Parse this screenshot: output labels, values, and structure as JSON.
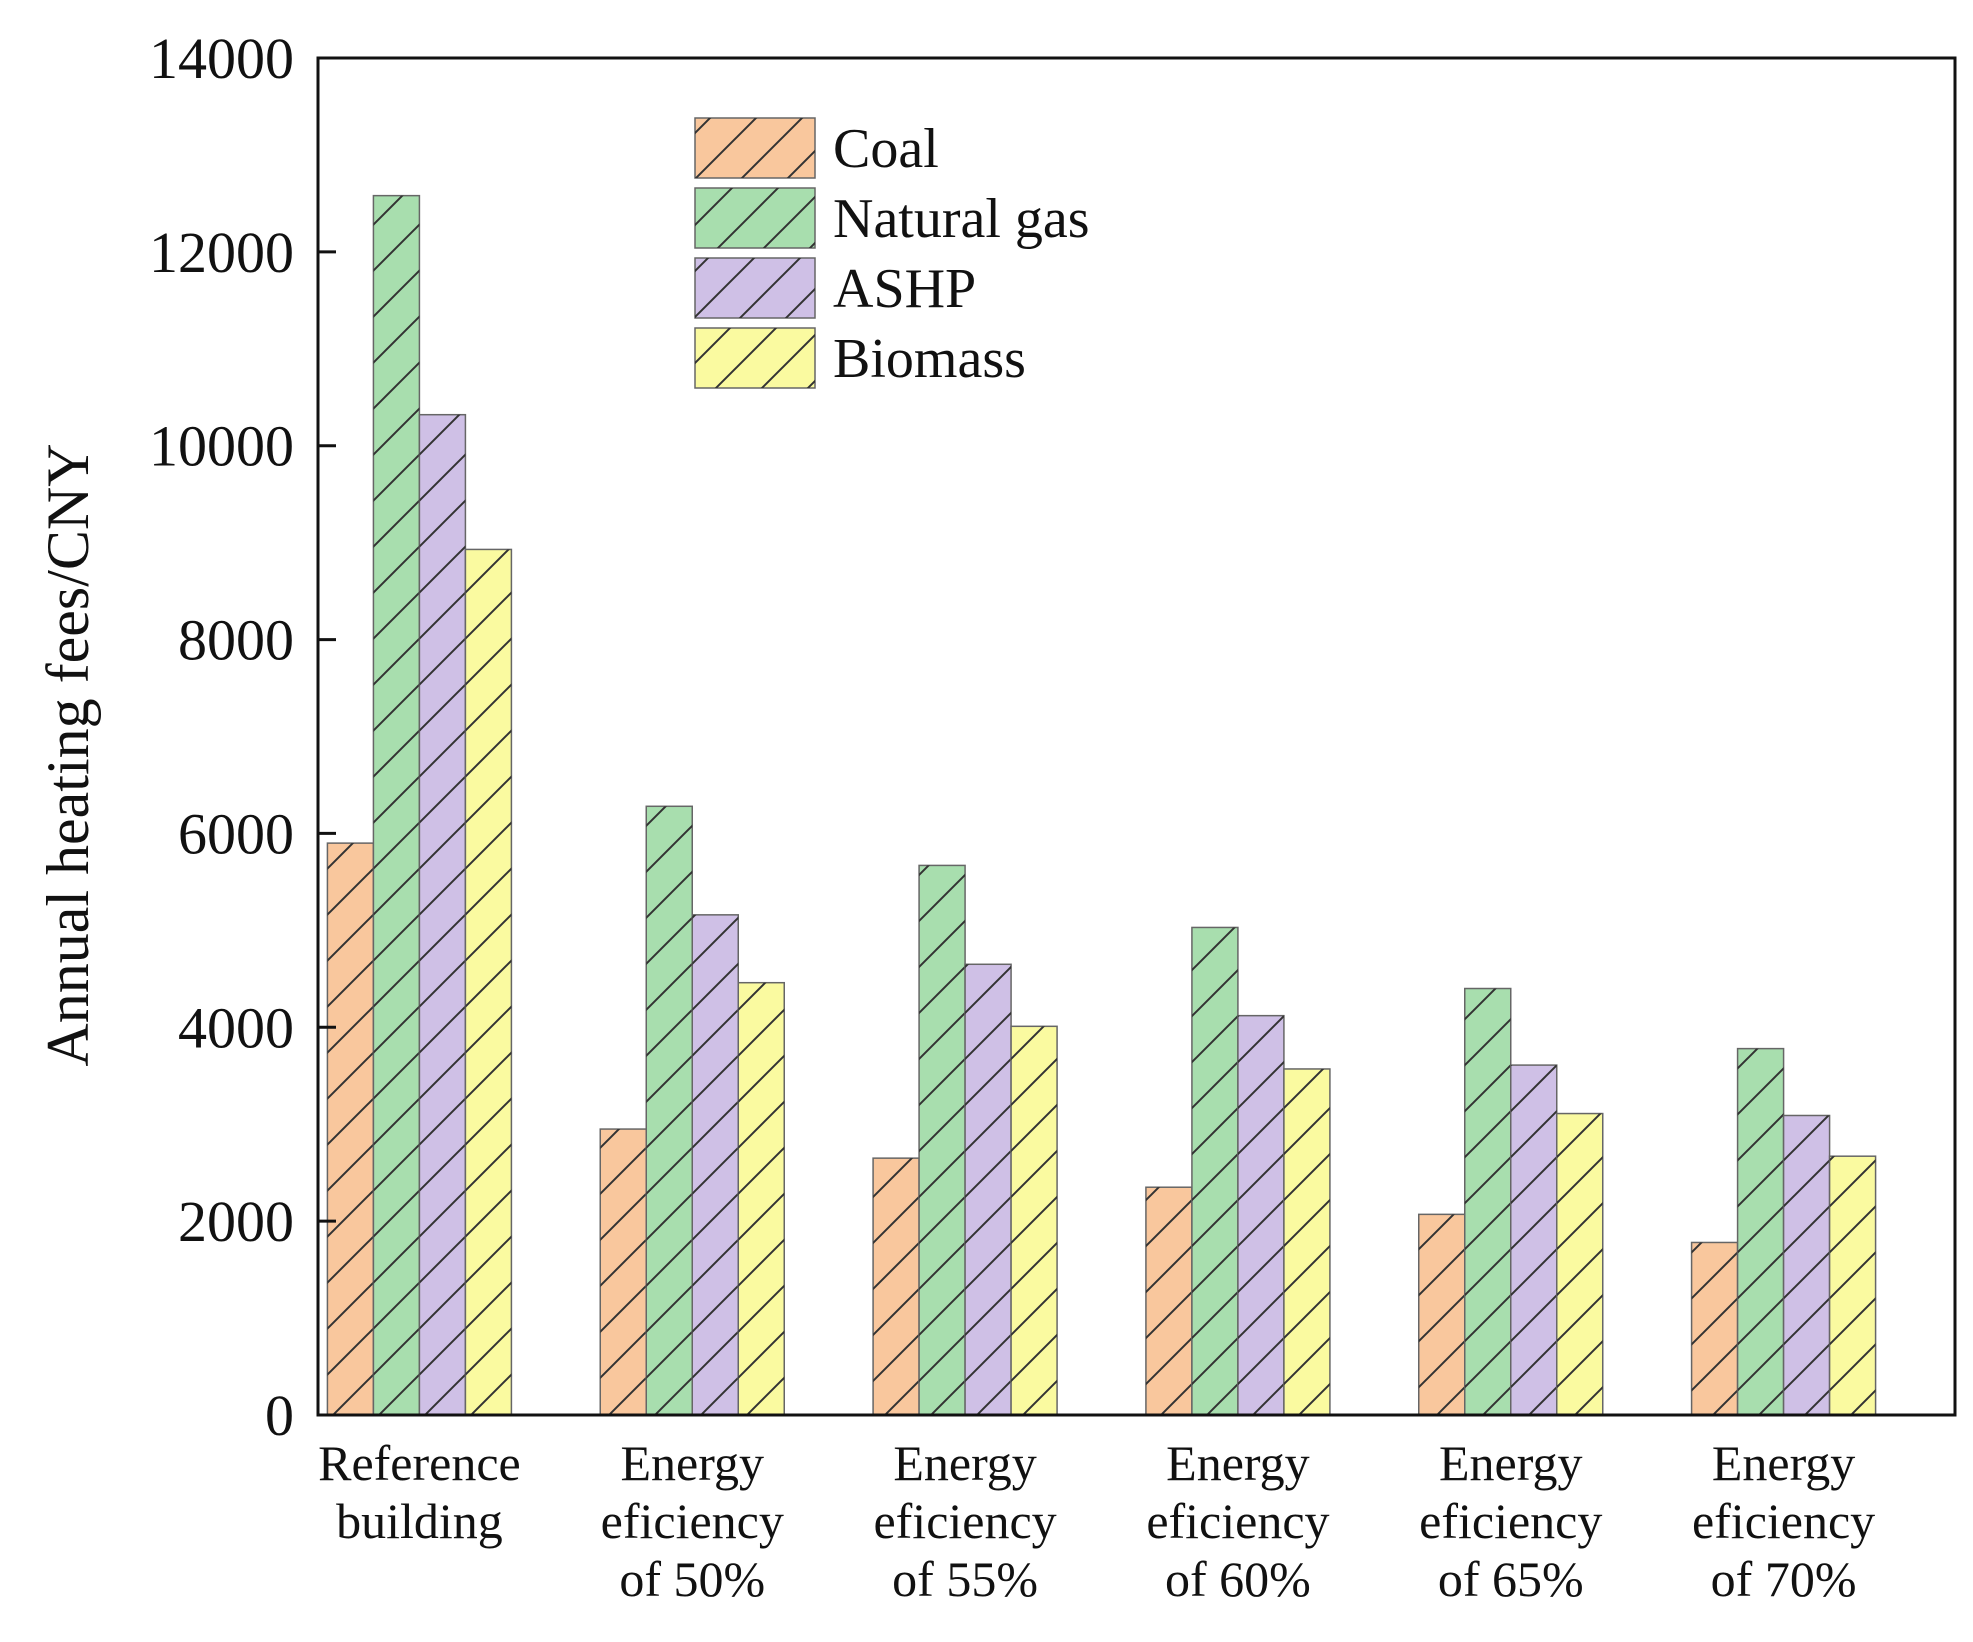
{
  "chart_data": {
    "type": "bar",
    "title": "",
    "xlabel": "",
    "ylabel": "Annual heating fees/CNY",
    "ylim": [
      0,
      14000
    ],
    "yticks": [
      0,
      2000,
      4000,
      6000,
      8000,
      10000,
      12000,
      14000
    ],
    "grid": false,
    "legend_position": "top-center",
    "categories": [
      [
        "Reference",
        "building"
      ],
      [
        "Energy",
        "eficiency",
        "of 50%"
      ],
      [
        "Energy",
        "eficiency",
        "of 55%"
      ],
      [
        "Energy",
        "eficiency",
        "of 60%"
      ],
      [
        "Energy",
        "eficiency",
        "of 65%"
      ],
      [
        "Energy",
        "eficiency",
        "of 70%"
      ]
    ],
    "series": [
      {
        "name": "Coal",
        "color": "#F9C79D",
        "values": [
          5900,
          2950,
          2650,
          2350,
          2070,
          1780
        ]
      },
      {
        "name": "Natural gas",
        "color": "#A8DEAE",
        "values": [
          12580,
          6280,
          5670,
          5030,
          4400,
          3780
        ]
      },
      {
        "name": "ASHP",
        "color": "#CFC0E6",
        "values": [
          10320,
          5160,
          4650,
          4120,
          3610,
          3090
        ]
      },
      {
        "name": "Biomass",
        "color": "#FAFAA0",
        "values": [
          8930,
          4460,
          4010,
          3570,
          3110,
          2670
        ]
      }
    ]
  }
}
